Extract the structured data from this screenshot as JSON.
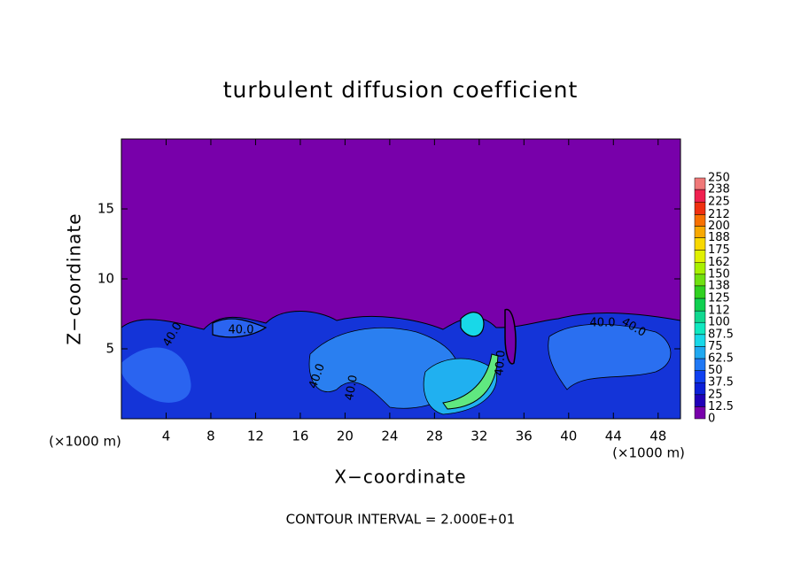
{
  "chart_data": {
    "type": "contour",
    "title": "turbulent diffusion coefficient",
    "x_label": "X−coordinate",
    "y_label": "Z−coordinate",
    "x_unit": "(×1000 m)",
    "y_unit": "(×1000 m)",
    "annotation": "CONTOUR INTERVAL = 2.000E+01",
    "xlim": [
      0,
      50
    ],
    "ylim": [
      0,
      20
    ],
    "xticks": [
      4,
      8,
      12,
      16,
      20,
      24,
      28,
      32,
      36,
      40,
      44,
      48
    ],
    "yticks": [
      5,
      10,
      15
    ],
    "contour_labels": [
      "40.0",
      "40.0",
      "40.0",
      "40.0",
      "40.0",
      "40.0",
      "40.0"
    ],
    "colorbar": {
      "levels": [
        0,
        12.5,
        25,
        37.5,
        50,
        62.5,
        75,
        87.5,
        100,
        112,
        125,
        138,
        150,
        162,
        175,
        188,
        200,
        212,
        225,
        238,
        250
      ],
      "colors": [
        "#7800aa",
        "#2000b8",
        "#0c20d8",
        "#1040f0",
        "#1f78f5",
        "#20a8f0",
        "#18d8e8",
        "#10e8c0",
        "#10d890",
        "#10d050",
        "#30d020",
        "#70e010",
        "#a8f000",
        "#e0f000",
        "#f8d800",
        "#f8a800",
        "#f87000",
        "#f03010",
        "#f02050",
        "#f07878"
      ]
    }
  }
}
